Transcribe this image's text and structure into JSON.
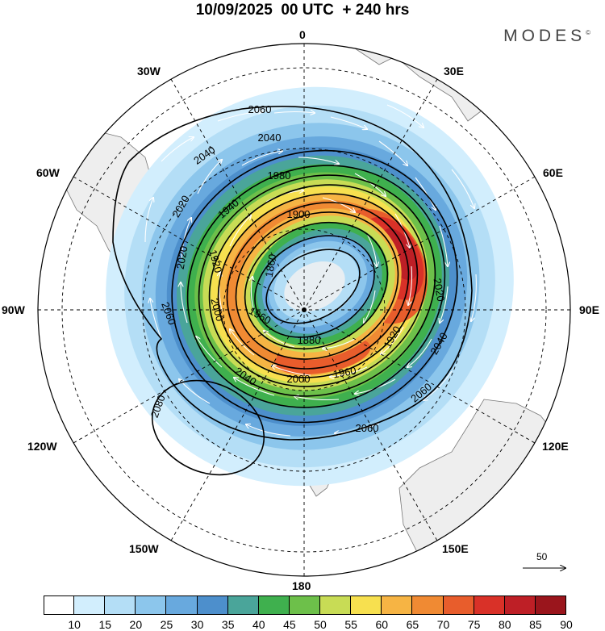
{
  "header": {
    "title": "10/09/2025  00 UTC  + 240 hrs",
    "brand": "MODES",
    "brand_mark": "©"
  },
  "map": {
    "projection": "south-polar-stereographic",
    "longitude_labels": [
      "0",
      "30E",
      "60E",
      "90E",
      "120E",
      "150E",
      "180",
      "150W",
      "120W",
      "90W",
      "60W",
      "30W"
    ],
    "field": "wind speed (shaded)",
    "contour_field": "geopotential height (contours)",
    "contour_labels": [
      "1860",
      "1880",
      "1900",
      "1920",
      "1940",
      "1960",
      "1980",
      "2000",
      "2020",
      "2040",
      "2060",
      "2080"
    ],
    "vector_scale_label": "50"
  },
  "colorbar": {
    "ticks": [
      "10",
      "15",
      "20",
      "25",
      "30",
      "35",
      "40",
      "45",
      "50",
      "55",
      "60",
      "65",
      "70",
      "75",
      "80",
      "85",
      "90"
    ],
    "colors": [
      "#ffffff",
      "#d2eefd",
      "#b4def6",
      "#8cc6ec",
      "#68a9de",
      "#4d8fcc",
      "#4aa59a",
      "#3fb04e",
      "#6dc04a",
      "#c8dc55",
      "#f7e04f",
      "#f6b444",
      "#f08a33",
      "#e85d2c",
      "#d93128",
      "#be1f26",
      "#9a151c"
    ]
  }
}
